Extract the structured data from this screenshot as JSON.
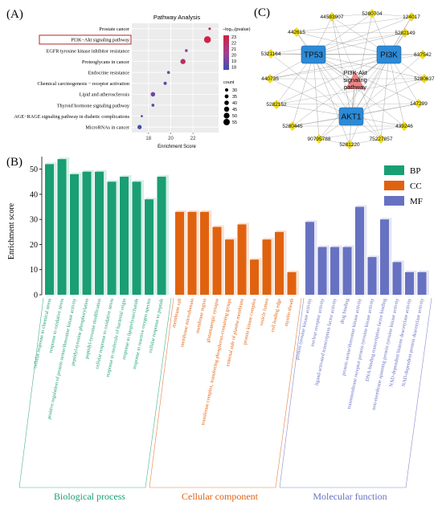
{
  "panel_labels": {
    "a": "(A)",
    "b": "(B)",
    "c": "(C)"
  },
  "chart_data": [
    {
      "type": "scatter",
      "title": "Pathway Analysis",
      "xlabel": "Enrichment Score",
      "ylabel": "",
      "xlim": [
        16.5,
        24.3
      ],
      "xticks": [
        18,
        20,
        22
      ],
      "categories": [
        "Prostate cancer",
        "PI3K−Akt signaling pathway",
        "EGFR tyrosine kinase inhibitor resistance",
        "Proteoglycans in cancer",
        "Endocrine resistance",
        "Chemical carcinogenesis − receptor activation",
        "Lipid and atherosclerosis",
        "Thyroid hormone signaling pathway",
        "AGE−RAGE signaling pathway in diabetic complications",
        "MicroRNAs in cancer"
      ],
      "highlighted_category": "PI3K−Akt signaling pathway",
      "x": [
        23.5,
        23.3,
        21.4,
        21.1,
        19.8,
        19.5,
        18.4,
        18.4,
        17.4,
        17.2
      ],
      "count": [
        25,
        58,
        27,
        45,
        28,
        30,
        40,
        28,
        22,
        38
      ],
      "neg_log10_pvalue": [
        21.5,
        22.8,
        19.5,
        21.8,
        19.0,
        18.3,
        18.8,
        18.2,
        17.9,
        17.6
      ],
      "color_legend": {
        "title": "−log₁₀(pvalue)",
        "ticks": [
          23,
          22,
          21,
          20,
          19,
          18
        ],
        "low_color": "#3f4fb3",
        "high_color": "#d0213f"
      },
      "size_legend": {
        "title": "count",
        "values": [
          30,
          35,
          40,
          45,
          50,
          55
        ]
      },
      "grid": true
    },
    {
      "type": "bar",
      "title": "",
      "xlabel": "",
      "ylabel": "Enrichment score",
      "ylim": [
        0,
        55
      ],
      "yticks": [
        0,
        10,
        20,
        30,
        40,
        50
      ],
      "legend_position": "top-right",
      "series": [
        {
          "name": "BP",
          "group_label": "Biological process",
          "color": "#1a9e74",
          "categories": [
            "cellular response to chemical stress",
            "response to oxidative stress",
            "positive regulation of protein serine/threonine kinase activity",
            "peptidyl-tyrosine phosphorylation",
            "peptidyl-tyrosine modification",
            "cellular response to oxidative stress",
            "response to molecule of bacterial origin",
            "response to lipopolysaccharide",
            "response to reactive oxygen species",
            "cellular response to peptide"
          ],
          "values": [
            52,
            54,
            48,
            49,
            49,
            45,
            47,
            45,
            38,
            47
          ]
        },
        {
          "name": "CC",
          "group_label": "Cellular component",
          "color": "#e0620f",
          "categories": [
            "membrane raft",
            "membrane microdomain",
            "membrane region",
            "glutamatergic synapse",
            "transferase complex, transferring phosphorus-containing groups",
            "external side of plasma membrane",
            "protein kinase complex",
            "vesicle lumen",
            "cell leading edge",
            "myelin sheath"
          ],
          "values": [
            33,
            33,
            33,
            27,
            22,
            28,
            14,
            22,
            25,
            9
          ]
        },
        {
          "name": "MF",
          "group_label": "Molecular function",
          "color": "#6771c2",
          "categories": [
            "protein tyrosine kinase activity",
            "nuclear receptor activity",
            "ligand-activated transcription factor activity",
            "drug binding",
            "protein serine/threonine kinase activity",
            "transmembrane receptor protein tyrosine kinase activity",
            "DNA-binding transcription factor binding",
            "non-membrane spanning protein tyrosine kinase activity",
            "NAD-dependent histone deacetylase activity",
            "NAD-dependent protein deacetylase activity"
          ],
          "values": [
            29,
            19,
            19,
            19,
            35,
            15,
            30,
            13,
            9,
            9
          ]
        }
      ]
    }
  ],
  "network": {
    "center_label": "PI3K-Akt signaling pathway",
    "center_color": "#e88585",
    "hub_color": "#2d8ad6",
    "compound_color": "#f2e11c",
    "hubs": [
      "TP53",
      "PI3K",
      "AKT1"
    ],
    "compounds": [
      "44583907",
      "5280704",
      "124017",
      "442615",
      "5282149",
      "5321164",
      "637542",
      "440735",
      "5280637",
      "5282152",
      "147299",
      "5280445",
      "439246",
      "90795788",
      "5281220",
      "75227857"
    ]
  }
}
